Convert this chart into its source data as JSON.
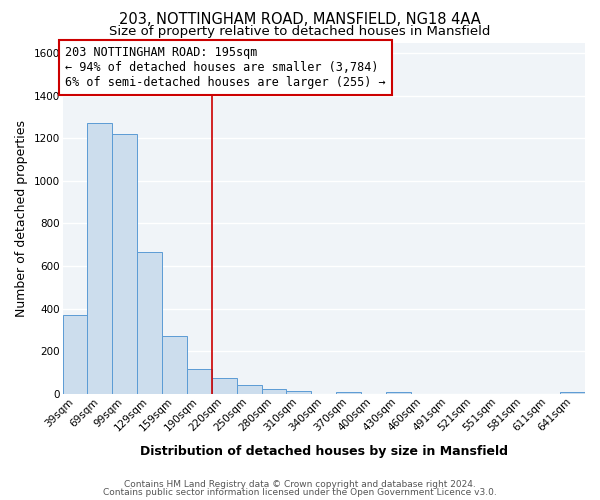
{
  "title": "203, NOTTINGHAM ROAD, MANSFIELD, NG18 4AA",
  "subtitle": "Size of property relative to detached houses in Mansfield",
  "xlabel": "Distribution of detached houses by size in Mansfield",
  "ylabel": "Number of detached properties",
  "bar_labels": [
    "39sqm",
    "69sqm",
    "99sqm",
    "129sqm",
    "159sqm",
    "190sqm",
    "220sqm",
    "250sqm",
    "280sqm",
    "310sqm",
    "340sqm",
    "370sqm",
    "400sqm",
    "430sqm",
    "460sqm",
    "491sqm",
    "521sqm",
    "551sqm",
    "581sqm",
    "611sqm",
    "641sqm"
  ],
  "bar_values": [
    370,
    1270,
    1220,
    665,
    270,
    115,
    75,
    40,
    20,
    15,
    0,
    10,
    0,
    10,
    0,
    0,
    0,
    0,
    0,
    0,
    10
  ],
  "bar_color": "#ccdded",
  "bar_edge_color": "#5b9bd5",
  "vline_x": 5.5,
  "vline_color": "#cc0000",
  "annotation_title": "203 NOTTINGHAM ROAD: 195sqm",
  "annotation_line1": "← 94% of detached houses are smaller (3,784)",
  "annotation_line2": "6% of semi-detached houses are larger (255) →",
  "annotation_box_facecolor": "#ffffff",
  "annotation_box_edgecolor": "#cc0000",
  "ylim": [
    0,
    1650
  ],
  "yticks": [
    0,
    200,
    400,
    600,
    800,
    1000,
    1200,
    1400,
    1600
  ],
  "footer1": "Contains HM Land Registry data © Crown copyright and database right 2024.",
  "footer2": "Contains public sector information licensed under the Open Government Licence v3.0.",
  "background_color": "#ffffff",
  "plot_bg_color": "#f0f4f8",
  "grid_color": "#ffffff",
  "title_fontsize": 10.5,
  "subtitle_fontsize": 9.5,
  "axis_label_fontsize": 9,
  "tick_fontsize": 7.5,
  "footer_fontsize": 6.5,
  "ann_fontsize": 8.5
}
